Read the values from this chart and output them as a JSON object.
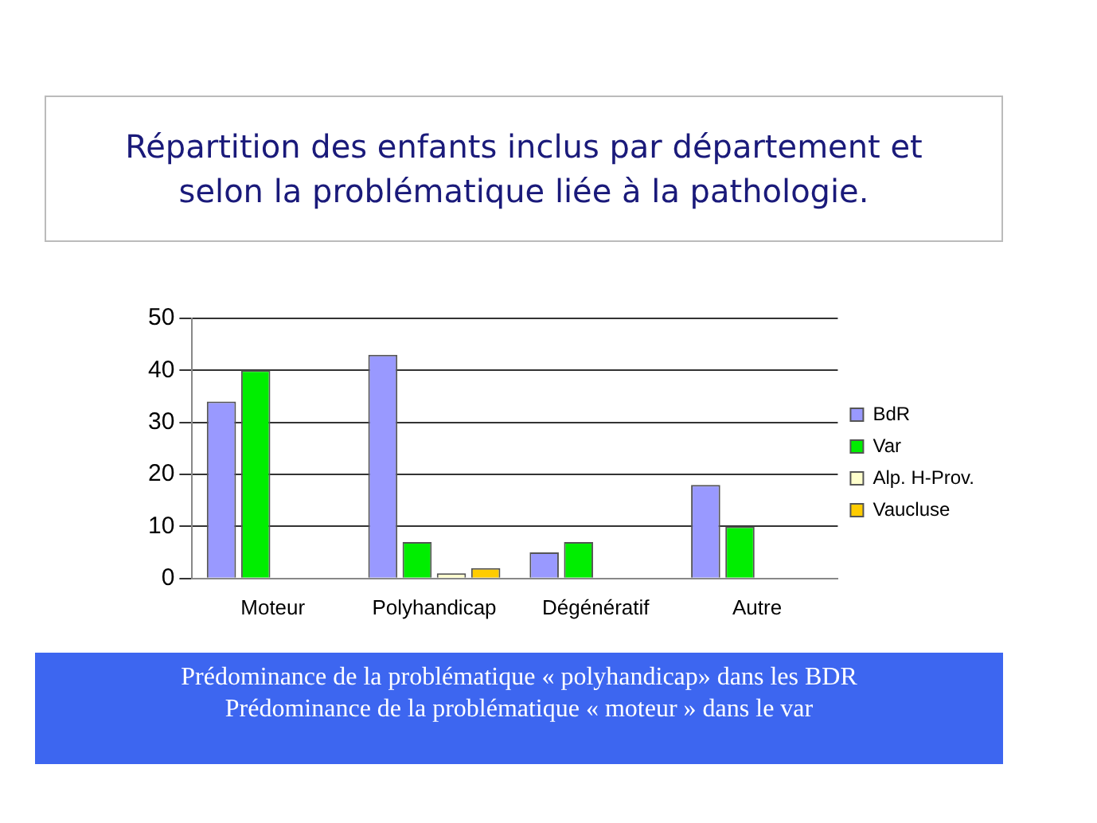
{
  "chart_data": {
    "type": "bar",
    "title": "Répartition des enfants inclus par département et selon la  problématique liée à la pathologie.",
    "categories": [
      "Moteur",
      "Polyhandicap",
      "Dégénératif",
      "Autre"
    ],
    "series": [
      {
        "name": "BdR",
        "color": "#9999ff",
        "values": [
          34,
          43,
          5,
          18
        ]
      },
      {
        "name": "Var",
        "color": "#00ee00",
        "values": [
          40,
          7,
          7,
          10
        ]
      },
      {
        "name": "Alp. H-Prov.",
        "color": "#ffffcc",
        "values": [
          0,
          1,
          0,
          0
        ]
      },
      {
        "name": "Vaucluse",
        "color": "#ffcc00",
        "values": [
          0,
          2,
          0,
          0
        ]
      }
    ],
    "ylim": [
      0,
      50
    ],
    "yticks": [
      0,
      10,
      20,
      30,
      40,
      50
    ],
    "grid": "y",
    "legend": "right",
    "annotations": [
      "Prédominance de la problématique « polyhandicap» dans les BDR",
      "Prédominance de la problématique « moteur » dans le var"
    ]
  }
}
